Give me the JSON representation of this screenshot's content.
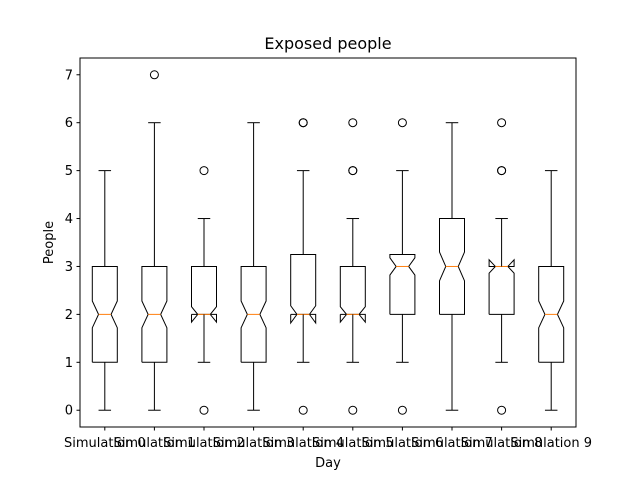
{
  "chart_data": {
    "type": "boxplot",
    "title": "Exposed people",
    "xlabel": "Day",
    "ylabel": "People",
    "ylim": [
      -0.35,
      7.35
    ],
    "yticks": [
      0,
      1,
      2,
      3,
      4,
      5,
      6,
      7
    ],
    "notched": true,
    "grid": false,
    "legend": "none",
    "colors": {
      "box": "#000000",
      "median": "#ff7f0e",
      "flier": "#000000"
    },
    "categories": [
      "Simulation 0",
      "Simulation 1",
      "Simulation 2",
      "Simulation 3",
      "Simulation 4",
      "Simulation 5",
      "Simulation 6",
      "Simulation 7",
      "Simulation 8",
      "Simulation 9"
    ],
    "boxes": [
      {
        "q1": 1,
        "median": 2,
        "q3": 3,
        "whisker_low": 0,
        "whisker_high": 5,
        "notch_low": 1.72,
        "notch_high": 2.28,
        "fliers": []
      },
      {
        "q1": 1,
        "median": 2,
        "q3": 3,
        "whisker_low": 0,
        "whisker_high": 6,
        "notch_low": 1.72,
        "notch_high": 2.28,
        "fliers": [
          7
        ]
      },
      {
        "q1": 2,
        "median": 2,
        "q3": 3,
        "whisker_low": 1,
        "whisker_high": 4,
        "notch_low": 1.84,
        "notch_high": 2.16,
        "fliers": [
          5,
          0
        ]
      },
      {
        "q1": 1,
        "median": 2,
        "q3": 3,
        "whisker_low": 0,
        "whisker_high": 6,
        "notch_low": 1.72,
        "notch_high": 2.28,
        "fliers": []
      },
      {
        "q1": 2,
        "median": 2,
        "q3": 3.25,
        "whisker_low": 1,
        "whisker_high": 5,
        "notch_low": 1.82,
        "notch_high": 2.18,
        "fliers": [
          6,
          6,
          0
        ]
      },
      {
        "q1": 2,
        "median": 2,
        "q3": 3,
        "whisker_low": 1,
        "whisker_high": 4,
        "notch_low": 1.84,
        "notch_high": 2.16,
        "fliers": [
          6,
          5,
          5,
          0
        ]
      },
      {
        "q1": 2,
        "median": 3,
        "q3": 3.25,
        "whisker_low": 1,
        "whisker_high": 5,
        "notch_low": 2.82,
        "notch_high": 3.18,
        "fliers": [
          6,
          0
        ]
      },
      {
        "q1": 2,
        "median": 3,
        "q3": 4,
        "whisker_low": 0,
        "whisker_high": 6,
        "notch_low": 2.7,
        "notch_high": 3.3,
        "fliers": []
      },
      {
        "q1": 2,
        "median": 3,
        "q3": 3,
        "whisker_low": 1,
        "whisker_high": 4,
        "notch_low": 2.86,
        "notch_high": 3.14,
        "fliers": [
          6,
          5,
          5,
          0
        ]
      },
      {
        "q1": 1,
        "median": 2,
        "q3": 3,
        "whisker_low": 0,
        "whisker_high": 5,
        "notch_low": 1.72,
        "notch_high": 2.28,
        "fliers": []
      }
    ]
  }
}
